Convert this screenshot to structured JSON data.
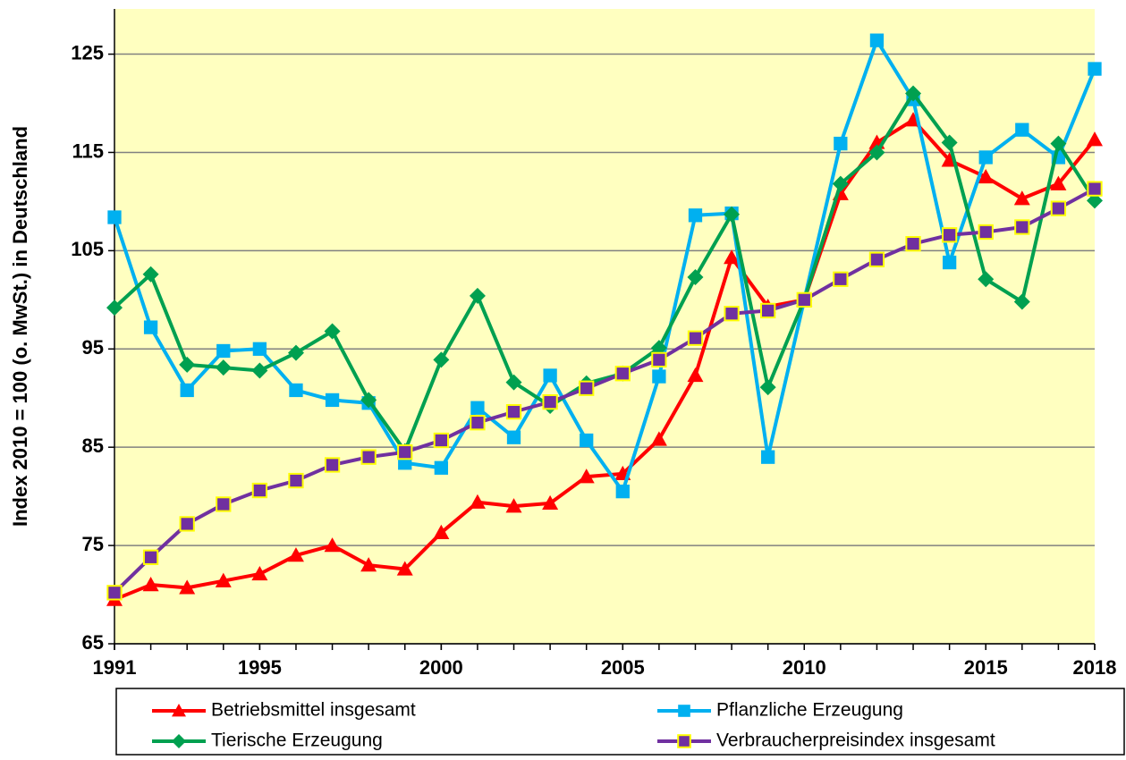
{
  "chart_data": {
    "type": "line",
    "y_label": "Index 2010 = 100 (o. MwSt.) in Deutschland",
    "x": [
      1991,
      1992,
      1993,
      1994,
      1995,
      1996,
      1997,
      1998,
      1999,
      2000,
      2001,
      2002,
      2003,
      2004,
      2005,
      2006,
      2007,
      2008,
      2009,
      2010,
      2011,
      2012,
      2013,
      2014,
      2015,
      2016,
      2017,
      2018
    ],
    "series": [
      {
        "name": "Betriebsmittel insgesamt",
        "color": "#ff0000",
        "marker": "triangle",
        "values": [
          69.5,
          71,
          70.7,
          71.4,
          72.1,
          74,
          75,
          73,
          72.6,
          76.3,
          79.4,
          79,
          79.3,
          82,
          82.3,
          85.8,
          92.3,
          104.3,
          99.3,
          100,
          110.8,
          116,
          118.3,
          114.2,
          112.5,
          110.3,
          111.8,
          116.3
        ]
      },
      {
        "name": "Pflanzliche Erzeugung",
        "color": "#00b0f0",
        "marker": "square",
        "values": [
          108.4,
          97.2,
          90.8,
          94.8,
          95,
          90.8,
          89.8,
          89.5,
          83.4,
          82.9,
          89,
          86,
          92.3,
          85.7,
          80.5,
          92.2,
          108.6,
          108.8,
          84,
          100,
          115.9,
          126.4,
          120.4,
          103.8,
          114.5,
          117.3,
          114.5,
          123.5
        ]
      },
      {
        "name": "Tierische Erzeugung",
        "color": "#00a050",
        "marker": "diamond",
        "values": [
          99.2,
          102.6,
          93.4,
          93.1,
          92.8,
          94.6,
          96.8,
          89.8,
          84.6,
          93.9,
          100.4,
          91.6,
          89.2,
          91.5,
          92.5,
          95.1,
          102.3,
          108.7,
          91.1,
          100,
          111.8,
          115,
          121,
          116,
          102.1,
          99.8,
          115.9,
          110.1
        ]
      },
      {
        "name": "Verbraucherpreisindex insgesamt",
        "color": "#7030a0",
        "marker": "square",
        "marker_edgecolor": "#ffff00",
        "values": [
          70.2,
          73.8,
          77.2,
          79.2,
          80.6,
          81.6,
          83.2,
          84,
          84.5,
          85.7,
          87.5,
          88.6,
          89.6,
          91,
          92.5,
          93.9,
          96.1,
          98.6,
          98.9,
          100,
          102.1,
          104.1,
          105.7,
          106.6,
          106.9,
          107.4,
          109.3,
          111.3
        ]
      }
    ],
    "xlim": [
      1991,
      2018
    ],
    "xticks": [
      1991,
      1995,
      2000,
      2005,
      2010,
      2015,
      2018
    ],
    "ylim": [
      65,
      129.6
    ],
    "yticks": [
      65,
      75,
      85,
      95,
      105,
      115,
      125
    ],
    "grid": true,
    "background": "#ffffc0",
    "legend": "bottom"
  }
}
